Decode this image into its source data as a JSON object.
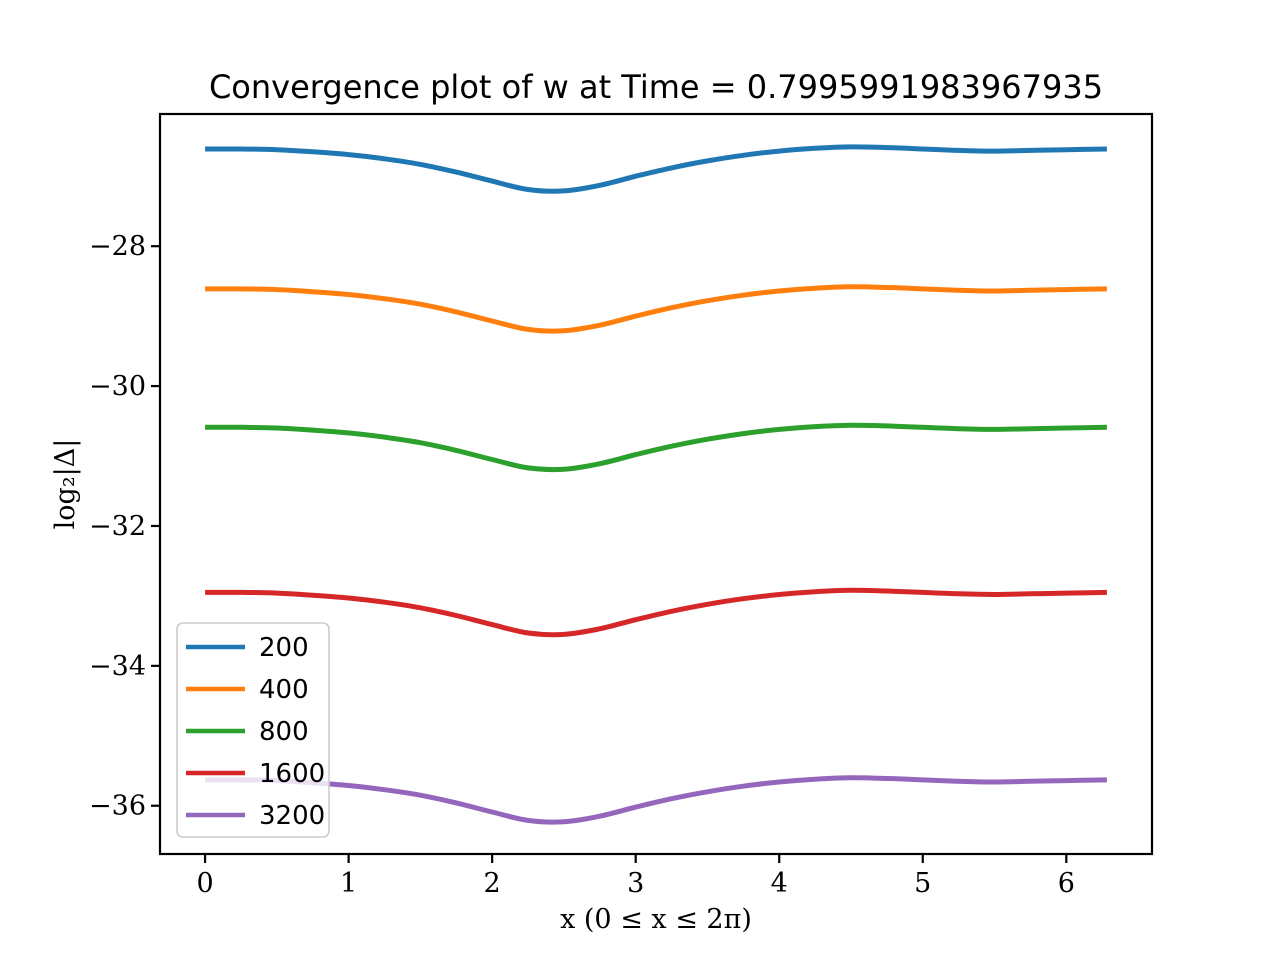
{
  "figure": {
    "background": "#ffffff",
    "axes_edge_color": "#000000",
    "legend_border_color": "#cccccc",
    "legend_fill_opacity": 0.8
  },
  "chart_data": {
    "type": "line",
    "title": "Convergence plot of w at Time = 0.7995991983967935",
    "xlabel": "x (0 ≤ x ≤ 2π)",
    "ylabel": "log₂|Δ|",
    "xlim": [
      -0.314,
      6.597
    ],
    "ylim": [
      -36.69,
      -26.11
    ],
    "xticks": [
      0,
      1,
      2,
      3,
      4,
      5,
      6
    ],
    "yticks": [
      -28,
      -30,
      -32,
      -34,
      -36
    ],
    "grid": false,
    "legend_position": "lower left",
    "x": [
      0,
      0.25,
      0.5,
      0.75,
      1.0,
      1.25,
      1.5,
      1.75,
      2.0,
      2.25,
      2.5,
      2.75,
      3.0,
      3.25,
      3.5,
      3.75,
      4.0,
      4.25,
      4.5,
      4.75,
      5.0,
      5.25,
      5.5,
      5.75,
      6.0,
      6.283
    ],
    "series": [
      {
        "name": "200",
        "color": "#1f77b4",
        "values": [
          -26.61,
          -26.61,
          -26.62,
          -26.65,
          -26.69,
          -26.75,
          -26.83,
          -26.94,
          -27.07,
          -27.19,
          -27.21,
          -27.13,
          -27.0,
          -26.88,
          -26.78,
          -26.7,
          -26.64,
          -26.6,
          -26.58,
          -26.59,
          -26.61,
          -26.63,
          -26.64,
          -26.63,
          -26.62,
          -26.61
        ]
      },
      {
        "name": "400",
        "color": "#ff7f0e",
        "values": [
          -28.61,
          -28.61,
          -28.62,
          -28.65,
          -28.69,
          -28.75,
          -28.83,
          -28.94,
          -29.07,
          -29.19,
          -29.21,
          -29.13,
          -29.0,
          -28.88,
          -28.78,
          -28.7,
          -28.64,
          -28.6,
          -28.58,
          -28.59,
          -28.61,
          -28.63,
          -28.64,
          -28.63,
          -28.62,
          -28.61
        ]
      },
      {
        "name": "800",
        "color": "#2ca02c",
        "values": [
          -30.59,
          -30.59,
          -30.6,
          -30.63,
          -30.67,
          -30.73,
          -30.81,
          -30.92,
          -31.05,
          -31.17,
          -31.19,
          -31.11,
          -30.98,
          -30.86,
          -30.76,
          -30.68,
          -30.62,
          -30.58,
          -30.56,
          -30.57,
          -30.59,
          -30.61,
          -30.62,
          -30.61,
          -30.6,
          -30.59
        ]
      },
      {
        "name": "1600",
        "color": "#d62728",
        "values": [
          -32.95,
          -32.95,
          -32.96,
          -32.99,
          -33.03,
          -33.09,
          -33.17,
          -33.28,
          -33.41,
          -33.53,
          -33.55,
          -33.47,
          -33.34,
          -33.22,
          -33.12,
          -33.04,
          -32.98,
          -32.94,
          -32.92,
          -32.93,
          -32.95,
          -32.97,
          -32.98,
          -32.97,
          -32.96,
          -32.95
        ]
      },
      {
        "name": "3200",
        "color": "#9467bd",
        "values": [
          -35.63,
          -35.63,
          -35.64,
          -35.67,
          -35.71,
          -35.77,
          -35.85,
          -35.96,
          -36.09,
          -36.21,
          -36.23,
          -36.15,
          -36.02,
          -35.9,
          -35.8,
          -35.72,
          -35.66,
          -35.62,
          -35.6,
          -35.61,
          -35.63,
          -35.65,
          -35.66,
          -35.65,
          -35.64,
          -35.63
        ]
      }
    ]
  }
}
